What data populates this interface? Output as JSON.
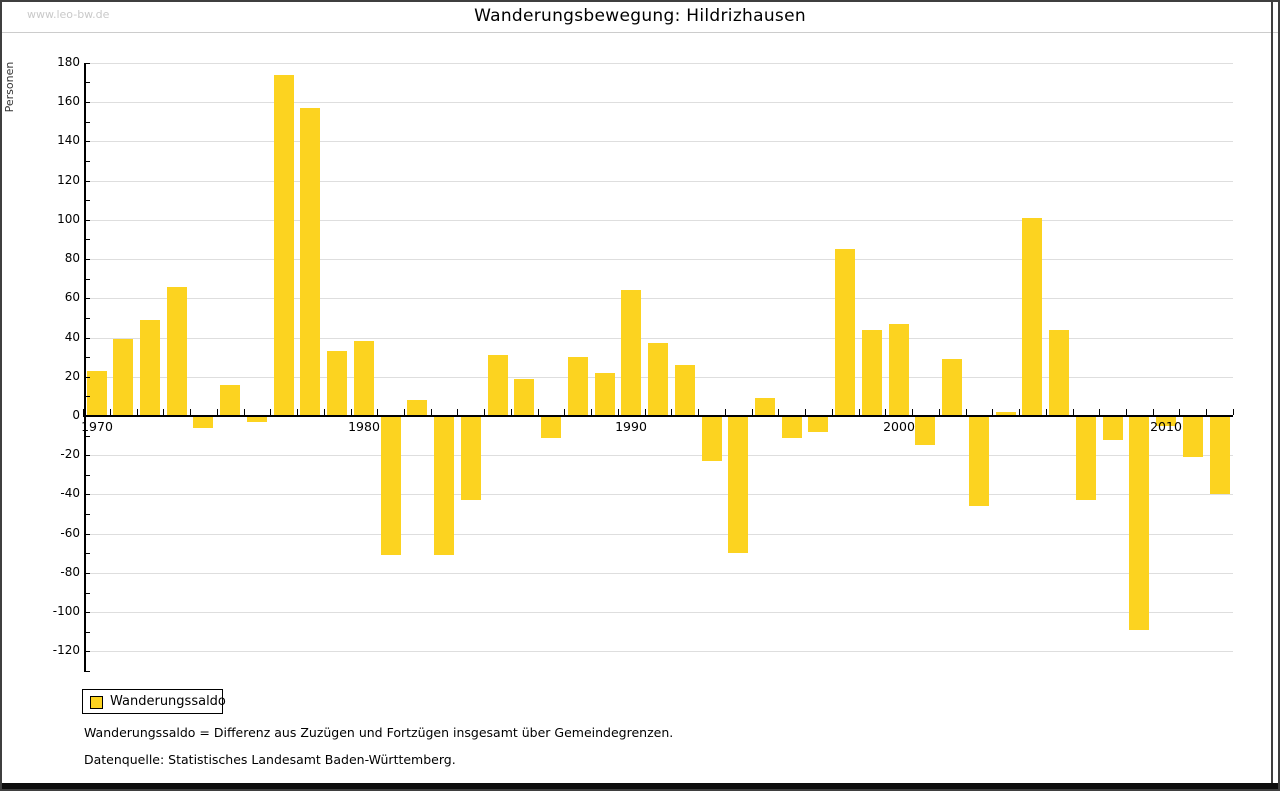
{
  "header": {
    "watermark": "www.leo-bw.de",
    "title": "Wanderungsbewegung: Hildrizhausen"
  },
  "chart_data": {
    "type": "bar",
    "title": "Wanderungsbewegung: Hildrizhausen",
    "xlabel": "",
    "ylabel": "Personen",
    "series": [
      {
        "name": "Wanderungssaldo",
        "color": "#FCD320"
      }
    ],
    "x": [
      1970,
      1971,
      1972,
      1973,
      1974,
      1975,
      1976,
      1977,
      1978,
      1979,
      1980,
      1981,
      1982,
      1983,
      1984,
      1985,
      1986,
      1987,
      1988,
      1989,
      1990,
      1991,
      1992,
      1993,
      1994,
      1995,
      1996,
      1997,
      1998,
      1999,
      2000,
      2001,
      2002,
      2003,
      2004,
      2005,
      2006,
      2007,
      2008,
      2009,
      2010,
      2011,
      2012
    ],
    "values": [
      23,
      39,
      49,
      66,
      -6,
      16,
      -3,
      174,
      157,
      33,
      38,
      -71,
      8,
      -71,
      -43,
      31,
      19,
      -11,
      30,
      22,
      64,
      37,
      26,
      -23,
      -70,
      9,
      -11,
      -8,
      85,
      44,
      47,
      -15,
      29,
      -46,
      2,
      101,
      44,
      -43,
      -12,
      -109,
      -5,
      -21,
      -40
    ],
    "ylim": [
      -120,
      180
    ],
    "ytick_step": 20,
    "ytick_labels": [
      "180",
      "160",
      "140",
      "120",
      "100",
      "80",
      "60",
      "40",
      "20",
      "0",
      "-20",
      "-40",
      "-60",
      "-80",
      "-100",
      "-120"
    ],
    "xtick_labels": [
      "1970",
      "1980",
      "1990",
      "2000",
      "2010"
    ],
    "grid": true,
    "legend_position": "bottom-left"
  },
  "legend": {
    "items": [
      {
        "label": "Wanderungssaldo",
        "color": "#FCD320"
      }
    ]
  },
  "footnotes": {
    "definition": "Wanderungssaldo = Differenz aus Zuzügen und Fortzügen insgesamt über Gemeindegrenzen.",
    "source": "Datenquelle: Statistisches Landesamt Baden-Württemberg."
  },
  "colors": {
    "bar": "#FCD320",
    "grid": "#DEDEDE",
    "axis": "#000000",
    "watermark": "#C9C9C9",
    "frame": "#3F3F3F"
  }
}
